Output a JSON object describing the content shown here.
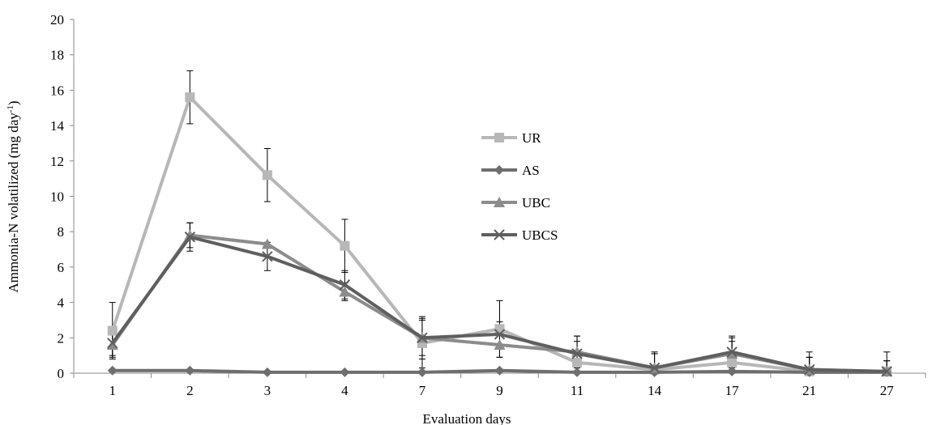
{
  "chart_data": {
    "type": "line",
    "xlabel": "Evaluation days",
    "ylabel": "Ammonia-N volatilized  (mg day",
    "ylabel_sup": "-1",
    "ylabel_close": ")",
    "categories": [
      "1",
      "2",
      "3",
      "4",
      "7",
      "9",
      "11",
      "14",
      "17",
      "21",
      "27"
    ],
    "ylim": [
      0,
      20
    ],
    "yticks": [
      0,
      2,
      4,
      6,
      8,
      10,
      12,
      14,
      16,
      18,
      20
    ],
    "grid": false,
    "legend_position": "center-right",
    "series": [
      {
        "name": "UR",
        "marker": "square",
        "color": "#b7b7b7",
        "values": [
          2.4,
          15.6,
          11.2,
          7.2,
          1.7,
          2.5,
          0.6,
          0.2,
          0.6,
          0.1,
          0.1
        ],
        "errors": [
          1.6,
          1.5,
          1.5,
          1.5,
          1.4,
          1.6,
          1.2,
          1.0,
          1.2,
          1.1,
          1.1
        ]
      },
      {
        "name": "AS",
        "marker": "diamond",
        "color": "#6e6e6e",
        "values": [
          0.15,
          0.15,
          0.05,
          0.05,
          0.05,
          0.15,
          0.05,
          0.05,
          0.1,
          0.05,
          0.05
        ],
        "errors": [
          0,
          0,
          0,
          0,
          0,
          0,
          0,
          0,
          0,
          0,
          0
        ]
      },
      {
        "name": "UBC",
        "marker": "triangle",
        "color": "#8c8c8c",
        "values": [
          1.6,
          7.8,
          7.3,
          4.6,
          2.0,
          1.6,
          1.2,
          0.3,
          1.1,
          0.2,
          0.1
        ],
        "errors": [
          0.7,
          0.7,
          0,
          0.5,
          1.2,
          0.7,
          0.9,
          0.8,
          0.9,
          0.7,
          0.6
        ]
      },
      {
        "name": "UBCS",
        "marker": "x",
        "color": "#5f5f5f",
        "values": [
          1.7,
          7.7,
          6.6,
          5.0,
          2.0,
          2.2,
          1.1,
          0.3,
          1.2,
          0.2,
          0.1
        ],
        "errors": [
          0.7,
          0.8,
          0.8,
          0.8,
          1.0,
          0.7,
          1.0,
          0.8,
          0.9,
          0.7,
          0.6
        ]
      }
    ]
  }
}
